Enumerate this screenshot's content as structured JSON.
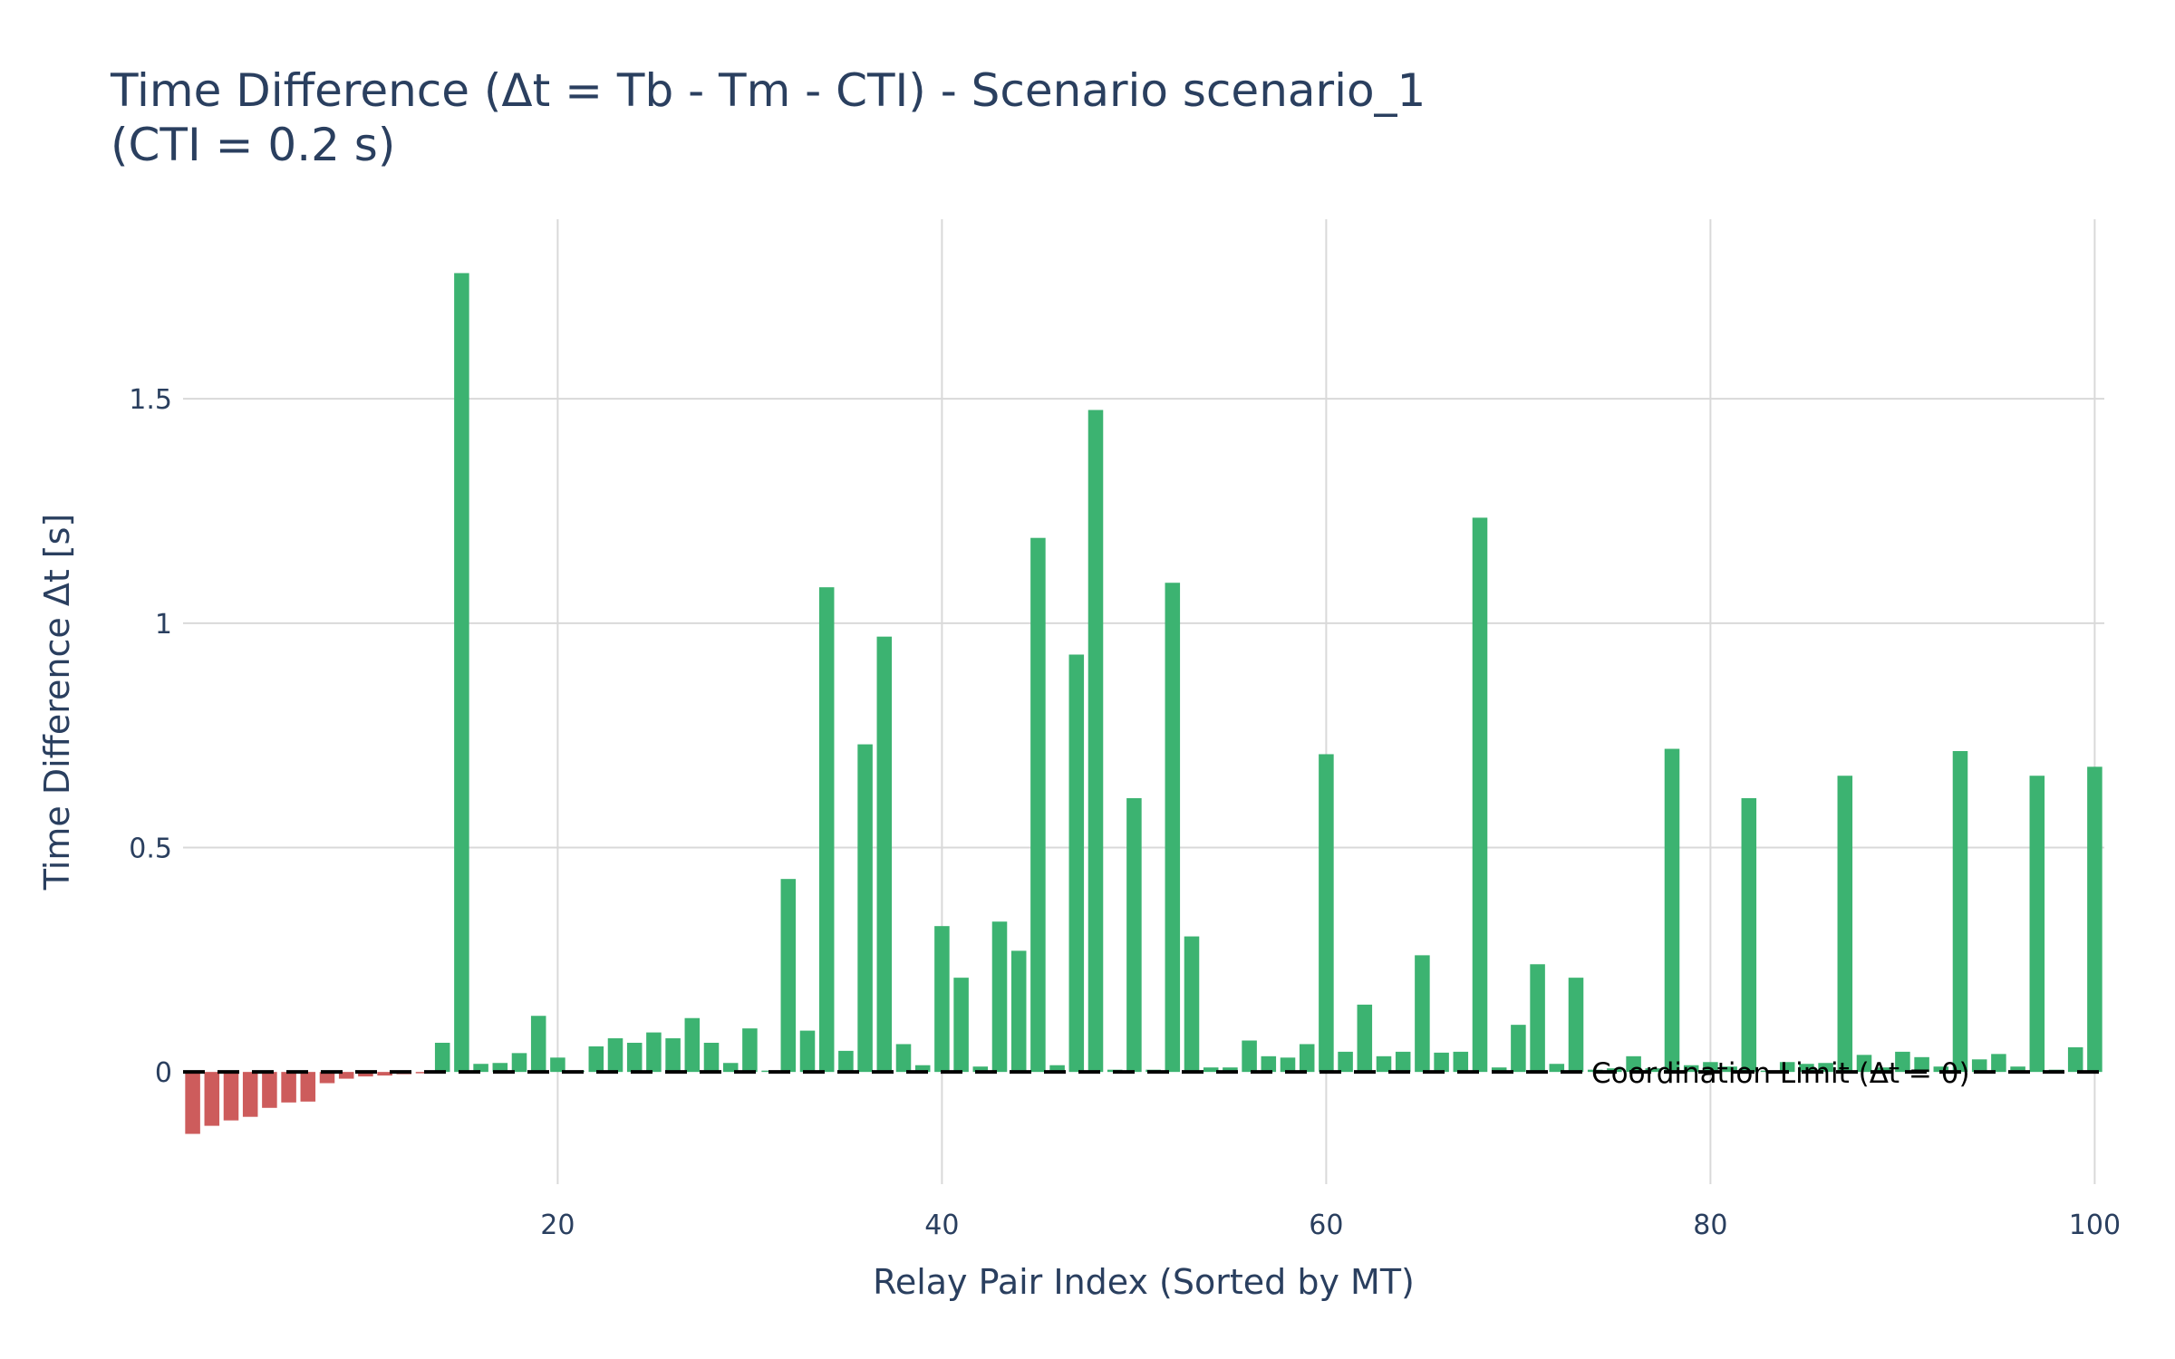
{
  "chart_data": {
    "type": "bar",
    "title": "Time Difference (Δt = Tb - Tm - CTI) - Scenario scenario_1",
    "subtitle": "(CTI = 0.2 s)",
    "xlabel": "Relay Pair Index (Sorted by MT)",
    "ylabel": "Time Difference Δt [s]",
    "xlim": [
      0.5,
      100.5
    ],
    "ylim": [
      -0.25,
      1.9
    ],
    "x_ticks": [
      20,
      40,
      60,
      80,
      100
    ],
    "y_ticks": [
      0,
      0.5,
      1,
      1.5
    ],
    "y_tick_labels": [
      "0",
      "0.5",
      "1",
      "1.5"
    ],
    "grid": true,
    "colors": {
      "negative": "#cd5c5c",
      "positive": "#3cb371",
      "gridline": "#d9d9d9",
      "reference_line": "#000000"
    },
    "reference_line": {
      "y": 0,
      "style": "dashed",
      "label": "Coordination Limit (Δt = 0)"
    },
    "x": [
      1,
      2,
      3,
      4,
      5,
      6,
      7,
      8,
      9,
      10,
      11,
      12,
      13,
      14,
      15,
      16,
      17,
      18,
      19,
      20,
      21,
      22,
      23,
      24,
      25,
      26,
      27,
      28,
      29,
      30,
      31,
      32,
      33,
      34,
      35,
      36,
      37,
      38,
      39,
      40,
      41,
      42,
      43,
      44,
      45,
      46,
      47,
      48,
      49,
      50,
      51,
      52,
      53,
      54,
      55,
      56,
      57,
      58,
      59,
      60,
      61,
      62,
      63,
      64,
      65,
      66,
      67,
      68,
      69,
      70,
      71,
      72,
      73,
      74,
      75,
      76,
      77,
      78,
      79,
      80,
      81,
      82,
      83,
      84,
      85,
      86,
      87,
      88,
      89,
      90,
      91,
      92,
      93,
      94,
      95,
      96,
      97,
      98,
      99,
      100
    ],
    "values": [
      -0.138,
      -0.12,
      -0.108,
      -0.1,
      -0.08,
      -0.068,
      -0.066,
      -0.025,
      -0.015,
      -0.01,
      -0.008,
      -0.005,
      -0.003,
      0.065,
      1.78,
      0.018,
      0.02,
      0.042,
      0.125,
      0.032,
      0.003,
      0.057,
      0.075,
      0.065,
      0.088,
      0.075,
      0.12,
      0.065,
      0.02,
      0.097,
      0.003,
      0.43,
      0.092,
      1.08,
      0.047,
      0.73,
      0.97,
      0.062,
      0.015,
      0.325,
      0.21,
      0.012,
      0.335,
      0.27,
      1.19,
      0.015,
      0.93,
      1.475,
      0.005,
      0.61,
      0.005,
      1.09,
      0.302,
      0.01,
      0.01,
      0.07,
      0.035,
      0.032,
      0.062,
      0.708,
      0.045,
      0.15,
      0.035,
      0.045,
      0.26,
      0.043,
      0.045,
      1.235,
      0.01,
      0.105,
      0.24,
      0.018,
      0.21,
      0.005,
      0.008,
      0.035,
      0.008,
      0.72,
      0.015,
      0.022,
      0.012,
      0.61,
      0.003,
      0.022,
      0.018,
      0.02,
      0.66,
      0.038,
      0.01,
      0.045,
      0.033,
      0.012,
      0.715,
      0.028,
      0.04,
      0.012,
      0.66,
      0.005,
      0.055,
      0.68
    ]
  }
}
